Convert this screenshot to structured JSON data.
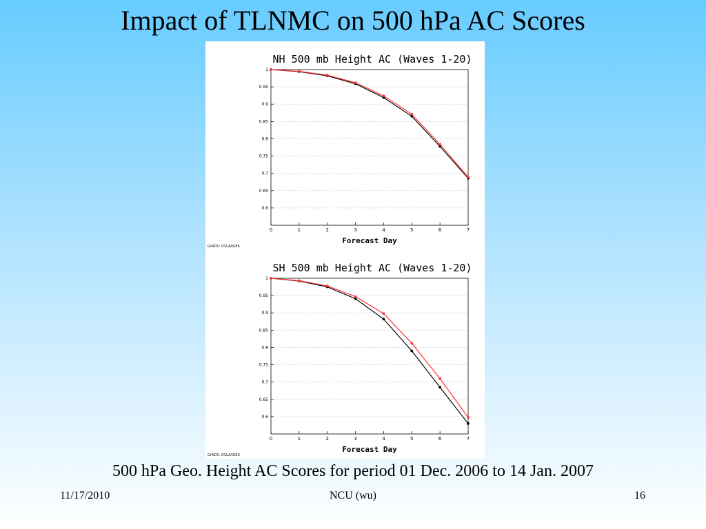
{
  "slide": {
    "title": "Impact of TLNMC on 500 hPa AC Scores",
    "caption": "500 hPa Geo. Height AC Scores for period 01 Dec. 2006 to 14 Jan. 2007",
    "footer_date": "11/17/2010",
    "footer_center": "NCU (wu)",
    "footer_page": "16"
  },
  "chart_data": [
    {
      "type": "line",
      "title": "NH 500 mb Height AC (Waves 1-20)",
      "xlabel": "Forecast Day",
      "ylabel": "",
      "x": [
        0,
        1,
        2,
        3,
        4,
        5,
        6,
        7
      ],
      "xlim": [
        0,
        7
      ],
      "ylim": [
        0.55,
        1.0
      ],
      "yticks": [
        "1",
        "0.95",
        "0.9",
        "0.85",
        "0.8",
        "0.75",
        "0.7",
        "0.65",
        "0.6"
      ],
      "xticks": [
        "0",
        "1",
        "2",
        "3",
        "4",
        "5",
        "6",
        "7"
      ],
      "grid": true,
      "credit": "GrADS: COLA/IGES",
      "series": [
        {
          "color": "#000000",
          "values": [
            1.0,
            0.994,
            0.982,
            0.959,
            0.919,
            0.865,
            0.778,
            0.686
          ]
        },
        {
          "color": "#ff3333",
          "values": [
            1.0,
            0.995,
            0.984,
            0.962,
            0.924,
            0.871,
            0.784,
            0.689
          ]
        }
      ]
    },
    {
      "type": "line",
      "title": "SH 500 mb Height AC (Waves 1-20)",
      "xlabel": "Forecast Day",
      "ylabel": "",
      "x": [
        0,
        1,
        2,
        3,
        4,
        5,
        6,
        7
      ],
      "xlim": [
        0,
        7
      ],
      "ylim": [
        0.55,
        1.0
      ],
      "yticks": [
        "1",
        "0.95",
        "0.9",
        "0.85",
        "0.8",
        "0.75",
        "0.7",
        "0.65",
        "0.6"
      ],
      "xticks": [
        "0",
        "1",
        "2",
        "3",
        "4",
        "5",
        "6",
        "7"
      ],
      "grid": true,
      "credit": "GrADS: COLA/IGES",
      "series": [
        {
          "color": "#000000",
          "values": [
            1.0,
            0.992,
            0.975,
            0.941,
            0.882,
            0.79,
            0.685,
            0.58
          ]
        },
        {
          "color": "#ff3333",
          "values": [
            1.0,
            0.993,
            0.978,
            0.947,
            0.898,
            0.812,
            0.71,
            0.598
          ]
        }
      ]
    }
  ]
}
